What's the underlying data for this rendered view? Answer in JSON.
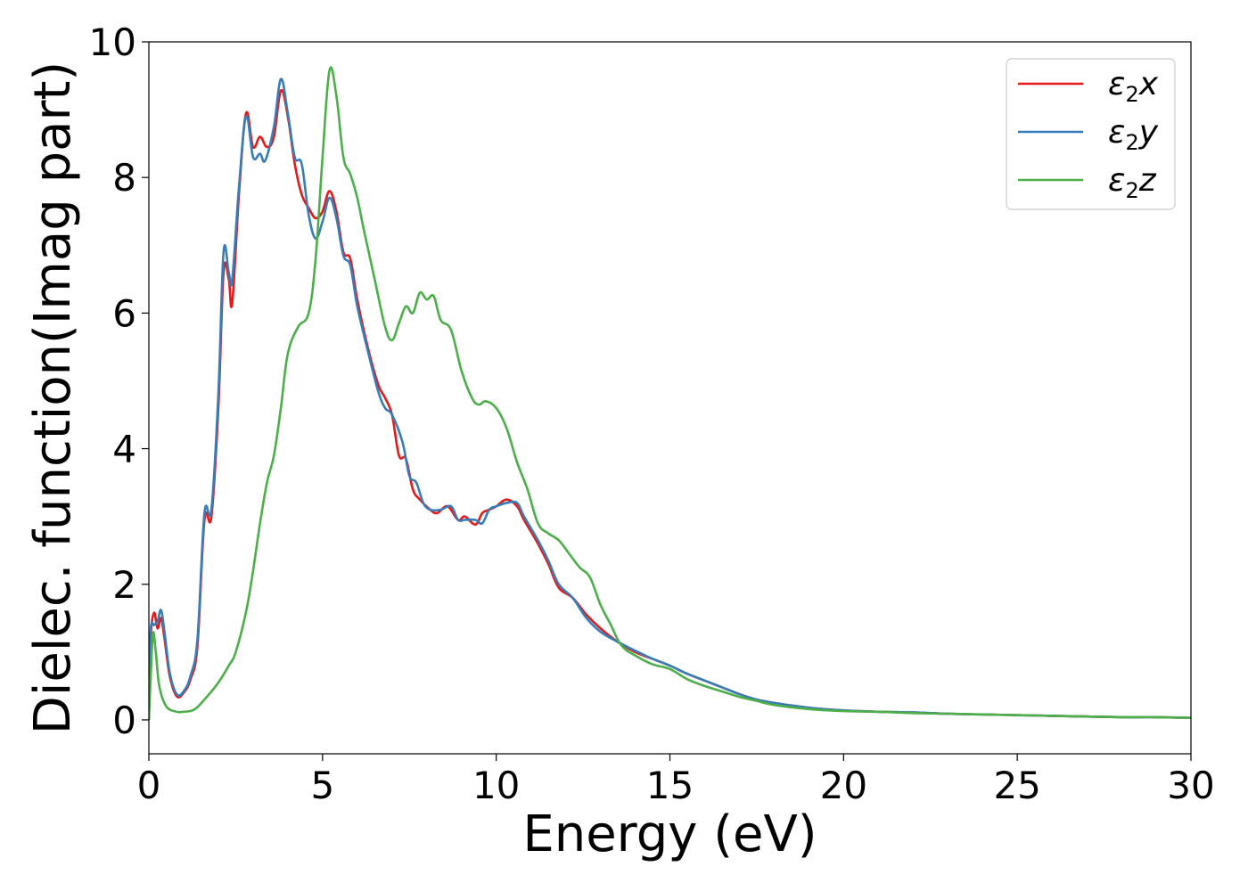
{
  "chart_data": {
    "type": "line",
    "xlabel": "Energy (eV)",
    "ylabel": "Dielec. function(Imag part)",
    "xlim": [
      0,
      30
    ],
    "ylim": [
      -0.5,
      10
    ],
    "x_ticks": [
      "0",
      "5",
      "10",
      "15",
      "20",
      "25",
      "30"
    ],
    "y_ticks": [
      "0",
      "2",
      "4",
      "6",
      "8",
      "10"
    ],
    "grid": false,
    "legend_position": "top-right",
    "series": [
      {
        "name": "ε2x",
        "symbol": "ε",
        "subscript": "2",
        "suffix": "x",
        "color": "#e41a1c",
        "points": [
          [
            0.0,
            0.0
          ],
          [
            0.05,
            1.2
          ],
          [
            0.15,
            1.58
          ],
          [
            0.25,
            1.35
          ],
          [
            0.35,
            1.5
          ],
          [
            0.45,
            1.2
          ],
          [
            0.6,
            0.65
          ],
          [
            0.8,
            0.35
          ],
          [
            1.0,
            0.4
          ],
          [
            1.2,
            0.6
          ],
          [
            1.4,
            1.1
          ],
          [
            1.6,
            2.95
          ],
          [
            1.8,
            3.0
          ],
          [
            2.0,
            4.6
          ],
          [
            2.15,
            6.6
          ],
          [
            2.3,
            6.5
          ],
          [
            2.4,
            6.15
          ],
          [
            2.6,
            7.8
          ],
          [
            2.8,
            8.95
          ],
          [
            3.0,
            8.45
          ],
          [
            3.2,
            8.6
          ],
          [
            3.4,
            8.45
          ],
          [
            3.6,
            8.6
          ],
          [
            3.8,
            9.28
          ],
          [
            4.0,
            8.9
          ],
          [
            4.2,
            8.2
          ],
          [
            4.4,
            7.75
          ],
          [
            4.6,
            7.55
          ],
          [
            4.8,
            7.4
          ],
          [
            5.0,
            7.5
          ],
          [
            5.2,
            7.8
          ],
          [
            5.4,
            7.5
          ],
          [
            5.6,
            6.9
          ],
          [
            5.8,
            6.8
          ],
          [
            6.0,
            6.2
          ],
          [
            6.3,
            5.5
          ],
          [
            6.6,
            4.95
          ],
          [
            6.8,
            4.75
          ],
          [
            7.0,
            4.5
          ],
          [
            7.2,
            3.9
          ],
          [
            7.4,
            3.85
          ],
          [
            7.6,
            3.4
          ],
          [
            7.8,
            3.25
          ],
          [
            8.1,
            3.1
          ],
          [
            8.3,
            3.05
          ],
          [
            8.6,
            3.15
          ],
          [
            8.9,
            2.95
          ],
          [
            9.1,
            3.0
          ],
          [
            9.4,
            2.88
          ],
          [
            9.6,
            3.05
          ],
          [
            9.8,
            3.1
          ],
          [
            10.0,
            3.15
          ],
          [
            10.3,
            3.25
          ],
          [
            10.6,
            3.15
          ],
          [
            10.8,
            2.95
          ],
          [
            11.2,
            2.6
          ],
          [
            11.5,
            2.3
          ],
          [
            11.8,
            1.95
          ],
          [
            12.2,
            1.8
          ],
          [
            12.6,
            1.55
          ],
          [
            13.0,
            1.35
          ],
          [
            13.5,
            1.15
          ],
          [
            14.0,
            1.0
          ],
          [
            14.5,
            0.9
          ],
          [
            15.0,
            0.8
          ],
          [
            15.5,
            0.68
          ],
          [
            16.0,
            0.58
          ],
          [
            16.5,
            0.48
          ],
          [
            17.0,
            0.38
          ],
          [
            17.5,
            0.3
          ],
          [
            18.0,
            0.25
          ],
          [
            19.0,
            0.18
          ],
          [
            20.0,
            0.14
          ],
          [
            21.0,
            0.12
          ],
          [
            22.0,
            0.11
          ],
          [
            23.0,
            0.09
          ],
          [
            24.0,
            0.08
          ],
          [
            25.0,
            0.07
          ],
          [
            26.0,
            0.06
          ],
          [
            27.0,
            0.05
          ],
          [
            28.0,
            0.04
          ],
          [
            29.0,
            0.04
          ],
          [
            30.0,
            0.03
          ]
        ]
      },
      {
        "name": "ε2y",
        "symbol": "ε",
        "subscript": "2",
        "suffix": "y",
        "color": "#377eb8",
        "points": [
          [
            0.0,
            0.0
          ],
          [
            0.05,
            1.3
          ],
          [
            0.15,
            1.4
          ],
          [
            0.25,
            1.45
          ],
          [
            0.35,
            1.62
          ],
          [
            0.45,
            1.3
          ],
          [
            0.6,
            0.7
          ],
          [
            0.8,
            0.38
          ],
          [
            1.0,
            0.42
          ],
          [
            1.2,
            0.65
          ],
          [
            1.4,
            1.2
          ],
          [
            1.6,
            3.05
          ],
          [
            1.8,
            3.1
          ],
          [
            2.0,
            4.8
          ],
          [
            2.15,
            6.9
          ],
          [
            2.3,
            6.6
          ],
          [
            2.4,
            6.5
          ],
          [
            2.6,
            7.9
          ],
          [
            2.8,
            8.9
          ],
          [
            3.0,
            8.3
          ],
          [
            3.2,
            8.35
          ],
          [
            3.35,
            8.25
          ],
          [
            3.6,
            8.75
          ],
          [
            3.8,
            9.45
          ],
          [
            4.0,
            8.95
          ],
          [
            4.2,
            8.3
          ],
          [
            4.4,
            8.2
          ],
          [
            4.6,
            7.45
          ],
          [
            4.8,
            7.1
          ],
          [
            5.0,
            7.35
          ],
          [
            5.2,
            7.7
          ],
          [
            5.4,
            7.4
          ],
          [
            5.6,
            6.85
          ],
          [
            5.8,
            6.7
          ],
          [
            6.0,
            6.1
          ],
          [
            6.3,
            5.45
          ],
          [
            6.6,
            4.85
          ],
          [
            6.8,
            4.6
          ],
          [
            7.0,
            4.5
          ],
          [
            7.3,
            4.1
          ],
          [
            7.5,
            3.6
          ],
          [
            7.7,
            3.5
          ],
          [
            7.9,
            3.2
          ],
          [
            8.1,
            3.1
          ],
          [
            8.4,
            3.1
          ],
          [
            8.7,
            3.15
          ],
          [
            8.9,
            2.95
          ],
          [
            9.1,
            2.95
          ],
          [
            9.4,
            2.95
          ],
          [
            9.6,
            2.9
          ],
          [
            9.8,
            3.1
          ],
          [
            10.0,
            3.15
          ],
          [
            10.3,
            3.2
          ],
          [
            10.6,
            3.2
          ],
          [
            10.8,
            3.0
          ],
          [
            11.2,
            2.65
          ],
          [
            11.5,
            2.35
          ],
          [
            11.8,
            2.0
          ],
          [
            12.2,
            1.8
          ],
          [
            12.6,
            1.5
          ],
          [
            13.0,
            1.3
          ],
          [
            13.5,
            1.15
          ],
          [
            14.0,
            1.02
          ],
          [
            14.5,
            0.9
          ],
          [
            15.0,
            0.8
          ],
          [
            15.5,
            0.68
          ],
          [
            16.0,
            0.58
          ],
          [
            16.5,
            0.48
          ],
          [
            17.0,
            0.38
          ],
          [
            17.5,
            0.3
          ],
          [
            18.0,
            0.25
          ],
          [
            19.0,
            0.18
          ],
          [
            20.0,
            0.14
          ],
          [
            21.0,
            0.12
          ],
          [
            22.0,
            0.11
          ],
          [
            23.0,
            0.09
          ],
          [
            24.0,
            0.08
          ],
          [
            25.0,
            0.07
          ],
          [
            26.0,
            0.06
          ],
          [
            27.0,
            0.05
          ],
          [
            28.0,
            0.04
          ],
          [
            29.0,
            0.04
          ],
          [
            30.0,
            0.03
          ]
        ]
      },
      {
        "name": "ε2z",
        "symbol": "ε",
        "subscript": "2",
        "suffix": "z",
        "color": "#4daf4a",
        "points": [
          [
            0.0,
            0.0
          ],
          [
            0.05,
            0.6
          ],
          [
            0.12,
            1.28
          ],
          [
            0.2,
            1.0
          ],
          [
            0.3,
            0.5
          ],
          [
            0.5,
            0.2
          ],
          [
            0.8,
            0.12
          ],
          [
            1.0,
            0.12
          ],
          [
            1.3,
            0.15
          ],
          [
            1.6,
            0.3
          ],
          [
            2.0,
            0.55
          ],
          [
            2.3,
            0.8
          ],
          [
            2.5,
            1.0
          ],
          [
            2.8,
            1.6
          ],
          [
            3.0,
            2.2
          ],
          [
            3.2,
            2.9
          ],
          [
            3.4,
            3.5
          ],
          [
            3.6,
            3.9
          ],
          [
            3.8,
            4.6
          ],
          [
            4.0,
            5.4
          ],
          [
            4.3,
            5.8
          ],
          [
            4.6,
            6.0
          ],
          [
            4.8,
            6.8
          ],
          [
            5.0,
            8.3
          ],
          [
            5.2,
            9.58
          ],
          [
            5.4,
            9.2
          ],
          [
            5.6,
            8.3
          ],
          [
            5.8,
            8.05
          ],
          [
            6.0,
            7.7
          ],
          [
            6.2,
            7.2
          ],
          [
            6.5,
            6.5
          ],
          [
            6.8,
            5.8
          ],
          [
            7.0,
            5.6
          ],
          [
            7.2,
            5.85
          ],
          [
            7.4,
            6.1
          ],
          [
            7.6,
            6.0
          ],
          [
            7.8,
            6.3
          ],
          [
            8.0,
            6.2
          ],
          [
            8.2,
            6.25
          ],
          [
            8.4,
            5.9
          ],
          [
            8.7,
            5.75
          ],
          [
            9.0,
            5.15
          ],
          [
            9.3,
            4.75
          ],
          [
            9.5,
            4.65
          ],
          [
            9.7,
            4.7
          ],
          [
            10.0,
            4.6
          ],
          [
            10.3,
            4.3
          ],
          [
            10.6,
            3.8
          ],
          [
            10.9,
            3.4
          ],
          [
            11.2,
            2.9
          ],
          [
            11.5,
            2.75
          ],
          [
            11.8,
            2.65
          ],
          [
            12.1,
            2.45
          ],
          [
            12.4,
            2.25
          ],
          [
            12.7,
            2.1
          ],
          [
            13.0,
            1.7
          ],
          [
            13.3,
            1.4
          ],
          [
            13.6,
            1.1
          ],
          [
            14.0,
            0.95
          ],
          [
            14.5,
            0.82
          ],
          [
            15.0,
            0.75
          ],
          [
            15.5,
            0.6
          ],
          [
            16.0,
            0.5
          ],
          [
            16.5,
            0.42
          ],
          [
            17.0,
            0.34
          ],
          [
            17.5,
            0.28
          ],
          [
            18.0,
            0.22
          ],
          [
            19.0,
            0.16
          ],
          [
            20.0,
            0.13
          ],
          [
            21.0,
            0.12
          ],
          [
            22.0,
            0.1
          ],
          [
            23.0,
            0.09
          ],
          [
            24.0,
            0.08
          ],
          [
            25.0,
            0.07
          ],
          [
            26.0,
            0.06
          ],
          [
            27.0,
            0.05
          ],
          [
            28.0,
            0.04
          ],
          [
            29.0,
            0.04
          ],
          [
            30.0,
            0.03
          ]
        ]
      }
    ]
  }
}
